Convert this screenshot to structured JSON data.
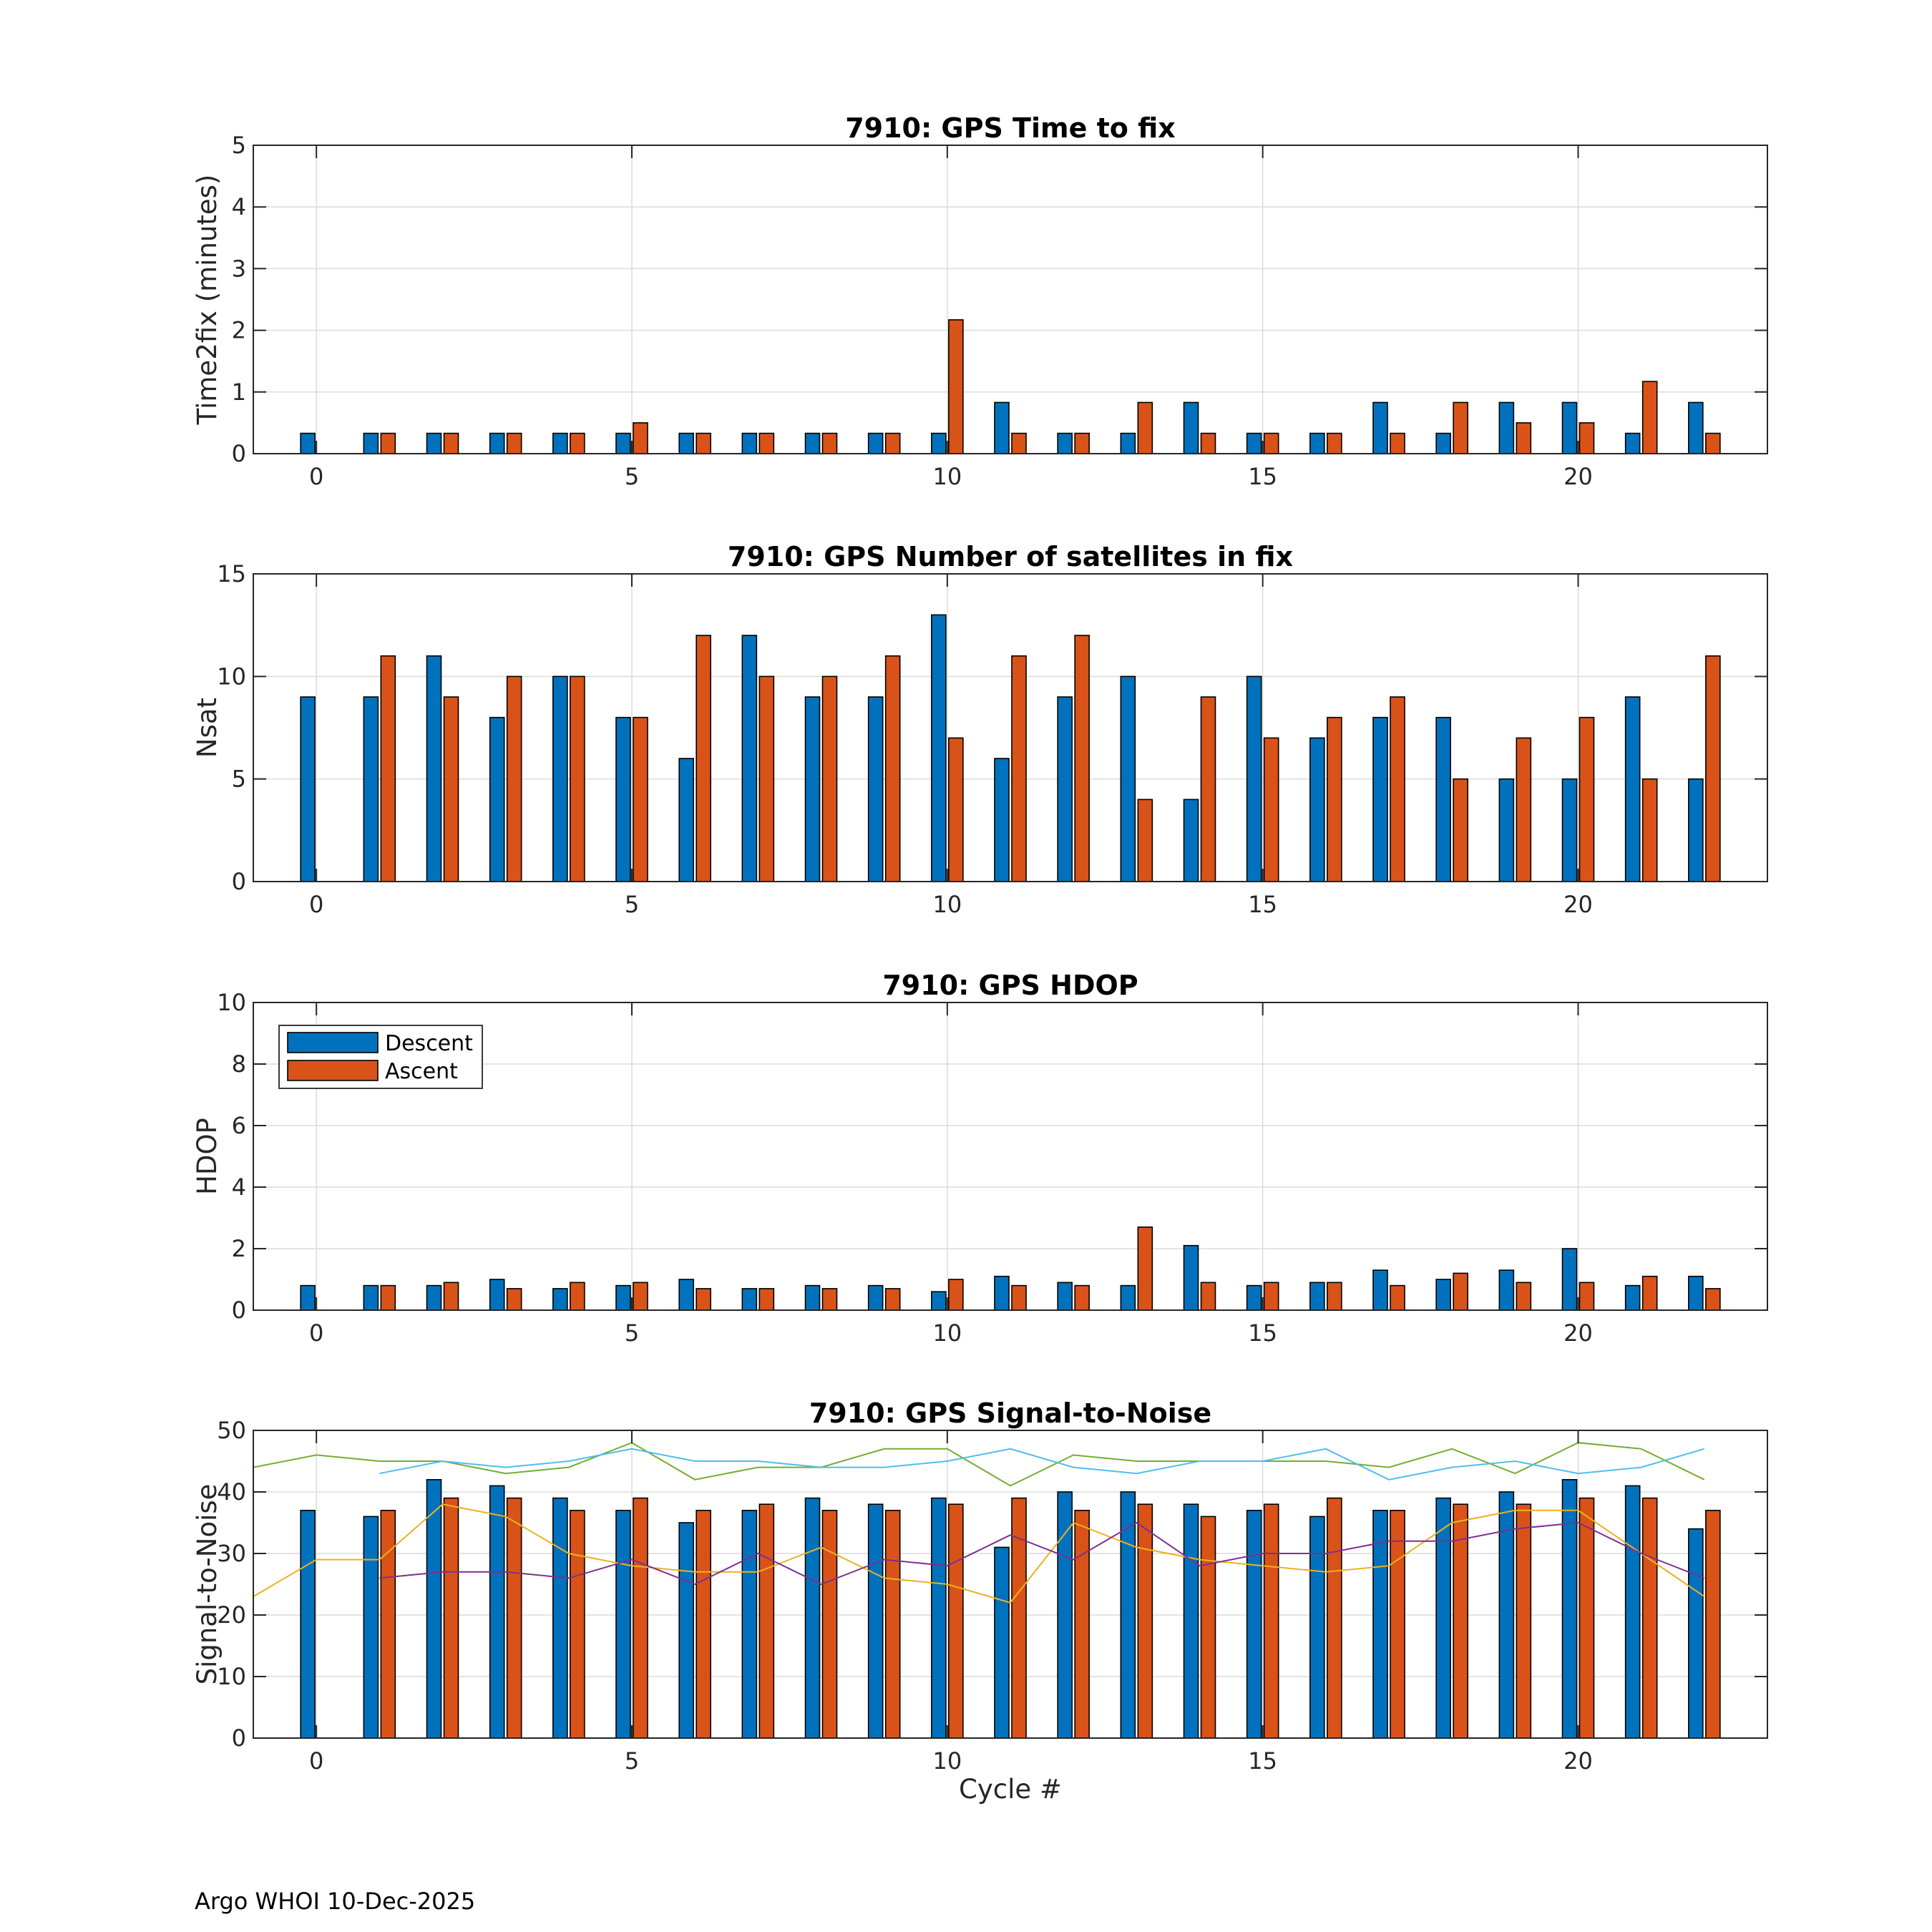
{
  "footer": "Argo WHOI 10-Dec-2025",
  "colors": {
    "descent": "#0072BD",
    "ascent": "#D95319",
    "grid": "#dcdcdc",
    "axis": "#262626"
  },
  "chart_data": [
    {
      "type": "bar",
      "title": "7910: GPS Time to fix",
      "ylabel": "Time2fix (minutes)",
      "xlabel": "",
      "xlim": [
        -1,
        23
      ],
      "ylim": [
        0,
        5
      ],
      "xticks": [
        0,
        5,
        10,
        15,
        20
      ],
      "yticks": [
        0,
        1,
        2,
        3,
        4,
        5
      ],
      "categories": [
        0,
        1,
        2,
        3,
        4,
        5,
        6,
        7,
        8,
        9,
        10,
        11,
        12,
        13,
        14,
        15,
        16,
        17,
        18,
        19,
        20,
        21,
        22
      ],
      "series": [
        {
          "name": "Descent",
          "values": [
            0.33,
            0.33,
            0.33,
            0.33,
            0.33,
            0.33,
            0.33,
            0.33,
            0.33,
            0.33,
            0.33,
            0.83,
            0.33,
            0.33,
            0.83,
            0.33,
            0.33,
            0.83,
            0.33,
            0.83,
            0.83,
            0.33,
            0.83
          ]
        },
        {
          "name": "Ascent",
          "values": [
            0,
            0.33,
            0.33,
            0.33,
            0.33,
            0.5,
            0.33,
            0.33,
            0.33,
            0.33,
            2.17,
            0.33,
            0.33,
            0.83,
            0.33,
            0.33,
            0.33,
            0.33,
            0.83,
            0.5,
            0.5,
            1.17,
            0.33
          ]
        }
      ]
    },
    {
      "type": "bar",
      "title": "7910: GPS Number of satellites in fix",
      "ylabel": "Nsat",
      "xlabel": "",
      "xlim": [
        -1,
        23
      ],
      "ylim": [
        0,
        15
      ],
      "xticks": [
        0,
        5,
        10,
        15,
        20
      ],
      "yticks": [
        0,
        5,
        10,
        15
      ],
      "categories": [
        0,
        1,
        2,
        3,
        4,
        5,
        6,
        7,
        8,
        9,
        10,
        11,
        12,
        13,
        14,
        15,
        16,
        17,
        18,
        19,
        20,
        21,
        22
      ],
      "series": [
        {
          "name": "Descent",
          "values": [
            9,
            9,
            11,
            8,
            10,
            8,
            6,
            12,
            9,
            9,
            13,
            6,
            9,
            10,
            4,
            10,
            7,
            8,
            8,
            5,
            5,
            9,
            5
          ]
        },
        {
          "name": "Ascent",
          "values": [
            0,
            11,
            9,
            10,
            10,
            8,
            12,
            10,
            10,
            11,
            7,
            11,
            12,
            4,
            9,
            7,
            8,
            9,
            5,
            7,
            8,
            5,
            11
          ]
        }
      ]
    },
    {
      "type": "bar",
      "title": "7910: GPS HDOP",
      "ylabel": "HDOP",
      "xlabel": "",
      "xlim": [
        -1,
        23
      ],
      "ylim": [
        0,
        10
      ],
      "xticks": [
        0,
        5,
        10,
        15,
        20
      ],
      "yticks": [
        0,
        2,
        4,
        6,
        8,
        10
      ],
      "legend": {
        "placement": "top-left",
        "entries": [
          "Descent",
          "Ascent"
        ]
      },
      "categories": [
        0,
        1,
        2,
        3,
        4,
        5,
        6,
        7,
        8,
        9,
        10,
        11,
        12,
        13,
        14,
        15,
        16,
        17,
        18,
        19,
        20,
        21,
        22
      ],
      "series": [
        {
          "name": "Descent",
          "values": [
            0.8,
            0.8,
            0.8,
            1.0,
            0.7,
            0.8,
            1.0,
            0.7,
            0.8,
            0.8,
            0.6,
            1.1,
            0.9,
            0.8,
            2.1,
            0.8,
            0.9,
            1.3,
            1.0,
            1.3,
            2.0,
            0.8,
            1.1
          ]
        },
        {
          "name": "Ascent",
          "values": [
            0,
            0.8,
            0.9,
            0.7,
            0.9,
            0.9,
            0.7,
            0.7,
            0.7,
            0.7,
            1.0,
            0.8,
            0.8,
            2.7,
            0.9,
            0.9,
            0.9,
            0.8,
            1.2,
            0.9,
            0.9,
            1.1,
            0.7
          ]
        }
      ]
    },
    {
      "type": "bar",
      "title": "7910: GPS Signal-to-Noise",
      "ylabel": "Signal-to-Noise",
      "xlabel": "Cycle #",
      "xlim": [
        -1,
        23
      ],
      "ylim": [
        0,
        50
      ],
      "xticks": [
        0,
        5,
        10,
        15,
        20
      ],
      "yticks": [
        0,
        10,
        20,
        30,
        40,
        50
      ],
      "categories": [
        0,
        1,
        2,
        3,
        4,
        5,
        6,
        7,
        8,
        9,
        10,
        11,
        12,
        13,
        14,
        15,
        16,
        17,
        18,
        19,
        20,
        21,
        22
      ],
      "series": [
        {
          "name": "Descent",
          "values": [
            37,
            36,
            42,
            41,
            39,
            37,
            35,
            37,
            39,
            38,
            39,
            31,
            40,
            40,
            38,
            37,
            36,
            37,
            39,
            40,
            42,
            41,
            34
          ]
        },
        {
          "name": "Ascent",
          "values": [
            0,
            37,
            39,
            39,
            37,
            39,
            37,
            38,
            37,
            37,
            38,
            39,
            37,
            38,
            36,
            38,
            39,
            37,
            38,
            38,
            39,
            39,
            37
          ]
        }
      ],
      "lines": [
        {
          "color": "#77AC30",
          "x": [
            -1,
            0,
            1,
            2,
            3,
            4,
            5,
            6,
            7,
            8,
            9,
            10,
            11,
            12,
            13,
            14,
            15,
            16,
            17,
            18,
            19,
            20,
            21,
            22
          ],
          "values": [
            44,
            46,
            45,
            45,
            43,
            44,
            48,
            42,
            44,
            44,
            47,
            47,
            41,
            46,
            45,
            45,
            45,
            45,
            44,
            47,
            43,
            48,
            47,
            42
          ]
        },
        {
          "color": "#4DBEEE",
          "x": [
            1,
            2,
            3,
            4,
            5,
            6,
            7,
            8,
            9,
            10,
            11,
            12,
            13,
            14,
            15,
            16,
            17,
            18,
            19,
            20,
            21,
            22
          ],
          "values": [
            43,
            45,
            44,
            45,
            47,
            45,
            45,
            44,
            44,
            45,
            47,
            44,
            43,
            45,
            45,
            47,
            42,
            44,
            45,
            43,
            44,
            47
          ]
        },
        {
          "color": "#EDB120",
          "x": [
            -1,
            0,
            1,
            2,
            3,
            4,
            5,
            6,
            7,
            8,
            9,
            10,
            11,
            12,
            13,
            14,
            15,
            16,
            17,
            18,
            19,
            20,
            21,
            22
          ],
          "values": [
            23,
            29,
            29,
            38,
            36,
            30,
            28,
            27,
            27,
            31,
            26,
            25,
            22,
            35,
            31,
            29,
            28,
            27,
            28,
            35,
            37,
            37,
            30,
            23
          ]
        },
        {
          "color": "#7E2F8E",
          "x": [
            1,
            2,
            3,
            4,
            5,
            6,
            7,
            8,
            9,
            10,
            11,
            12,
            13,
            14,
            15,
            16,
            17,
            18,
            19,
            20,
            21,
            22
          ],
          "values": [
            26,
            27,
            27,
            26,
            29,
            25,
            30,
            25,
            29,
            28,
            33,
            29,
            35,
            28,
            30,
            30,
            32,
            32,
            34,
            35,
            30,
            26
          ]
        }
      ]
    }
  ]
}
